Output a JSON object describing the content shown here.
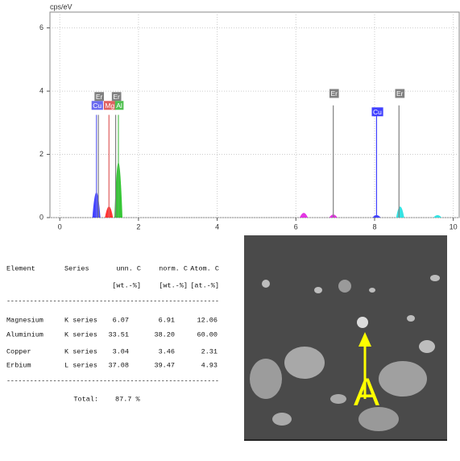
{
  "chart_data": {
    "type": "spectrum",
    "y_unit": "cps/eV",
    "xlim": [
      -0.25,
      10.15
    ],
    "xticks": [
      0,
      2,
      4,
      6,
      8,
      10
    ],
    "ylim": [
      0,
      6.5
    ],
    "yticks": [
      0,
      2,
      4,
      6
    ],
    "grid": true,
    "markers": [
      {
        "label": "Cu",
        "x": 0.93,
        "y": 3.25,
        "color": "#6b6bf0"
      },
      {
        "label": "Er",
        "x": 0.98,
        "y": 3.25,
        "color": "#808080"
      },
      {
        "label": "Mg",
        "x": 1.25,
        "y": 3.25,
        "color": "#e06060"
      },
      {
        "label": "Er",
        "x": 1.42,
        "y": 3.25,
        "color": "#808080"
      },
      {
        "label": "Al",
        "x": 1.49,
        "y": 3.25,
        "color": "#50c050"
      },
      {
        "label": "Er",
        "x": 6.95,
        "y": 3.55,
        "color": "#808080"
      },
      {
        "label": "Cu",
        "x": 8.05,
        "y": 3.25,
        "color": "#4040ff"
      },
      {
        "label": "Er",
        "x": 8.62,
        "y": 3.55,
        "color": "#808080"
      }
    ],
    "peaks": [
      {
        "x": 0.93,
        "y": 0.8,
        "color": "#3030ff"
      },
      {
        "x": 1.25,
        "y": 0.35,
        "color": "#ff2020"
      },
      {
        "x": 1.49,
        "y": 1.75,
        "color": "#20c020"
      },
      {
        "x": 6.2,
        "y": 0.15,
        "color": "#e020e0"
      },
      {
        "x": 6.95,
        "y": 0.1,
        "color": "#e020e0"
      },
      {
        "x": 8.05,
        "y": 0.08,
        "color": "#3030ff"
      },
      {
        "x": 8.65,
        "y": 0.35,
        "color": "#20e0e0"
      },
      {
        "x": 9.6,
        "y": 0.08,
        "color": "#20e0e0"
      }
    ]
  },
  "table": {
    "header": [
      "Element",
      "Series",
      "unn. C",
      "norm. C",
      "Atom. C"
    ],
    "units": [
      "[wt.-%]",
      "[wt.-%]",
      "[at.-%]"
    ],
    "rows": [
      [
        "Magnesium",
        "K series",
        "6.07",
        "6.91",
        "12.06"
      ],
      [
        "Aluminium",
        "K series",
        "33.51",
        "38.20",
        "60.00"
      ],
      [
        "Copper",
        "K series",
        "3.04",
        "3.46",
        "2.31"
      ],
      [
        "Erbium",
        "L series",
        "37.08",
        "39.47",
        "4.93"
      ]
    ],
    "separator": "-------------------------------------------------------",
    "total_label": "Total:",
    "total": "87.7 %"
  },
  "image": {
    "marker_label": "A"
  }
}
